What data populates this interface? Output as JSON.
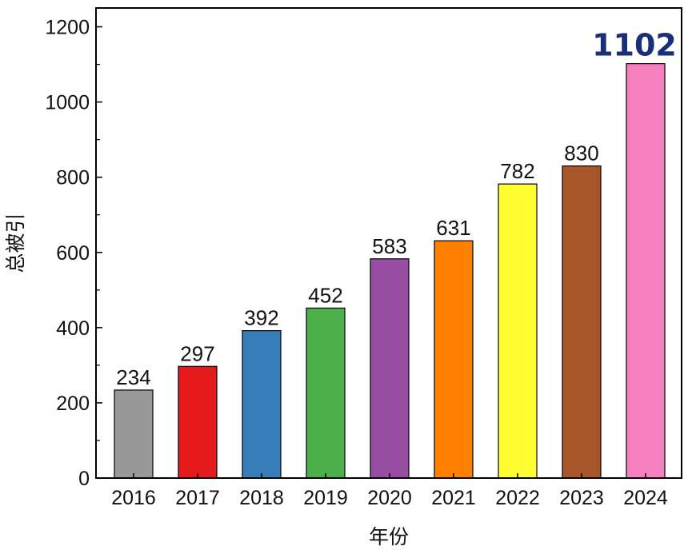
{
  "chart_data": {
    "type": "bar",
    "categories": [
      "2016",
      "2017",
      "2018",
      "2019",
      "2020",
      "2021",
      "2022",
      "2023",
      "2024"
    ],
    "values": [
      234,
      297,
      392,
      452,
      583,
      631,
      782,
      830,
      1102
    ],
    "value_labels": [
      "234",
      "297",
      "392",
      "452",
      "583",
      "631",
      "782",
      "830",
      "1102"
    ],
    "colors": [
      "#999999",
      "#e41a1c",
      "#377eb8",
      "#4daf4a",
      "#984ea3",
      "#ff7f00",
      "#ffff33",
      "#a65628",
      "#f781bf"
    ],
    "highlight_index": 8,
    "xlabel": "年份",
    "ylabel": "总被引",
    "ylim": [
      0,
      1250
    ],
    "yticks": [
      0,
      200,
      400,
      600,
      800,
      1000,
      1200
    ],
    "ytick_labels": [
      "0",
      "200",
      "400",
      "600",
      "800",
      "1000",
      "1200"
    ],
    "grid": false,
    "legend": false
  }
}
